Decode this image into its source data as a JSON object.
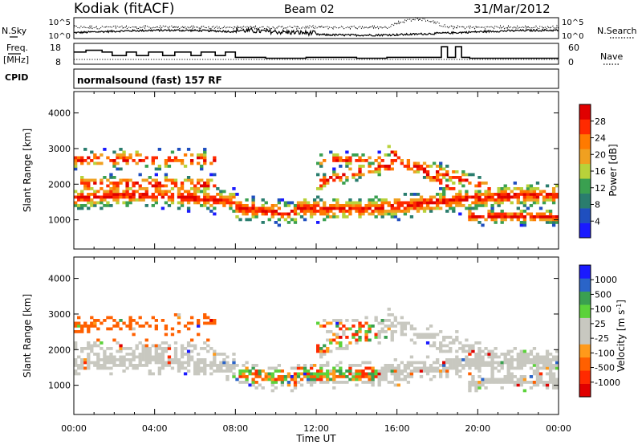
{
  "header": {
    "site": "Kodiak (fitACF)",
    "beam": "Beam 02",
    "date": "31/Mar/2012"
  },
  "labels": {
    "nsky": "N.Sky",
    "nsearch": "N.Search",
    "freq": "Freq.",
    "mhz": "[MHz]",
    "nave": "Nave",
    "cpid": "CPID",
    "cpid_value": "normalsound (fast) 157 RF",
    "nsky_ticks": [
      "10^5",
      "10^0"
    ],
    "nsearch_ticks": [
      "10^5",
      "10^0"
    ],
    "freq_ticks": [
      "18",
      "8"
    ],
    "nave_ticks": [
      "60",
      "0"
    ]
  },
  "colors": {
    "power": [
      "#1a1aff",
      "#1f4fbf",
      "#2a7d6e",
      "#3aa050",
      "#b8d23a",
      "#f0a020",
      "#ff7a00",
      "#ff2a00",
      "#e00000"
    ],
    "velocity": [
      "#1a1aff",
      "#2a64c8",
      "#3aa050",
      "#5bd23a",
      "#c8c8c0",
      "#c8c8c0",
      "#ff9a1a",
      "#ff6000",
      "#ff2a00",
      "#e00000"
    ]
  },
  "chart_data": [
    {
      "type": "line",
      "name": "header-timeseries",
      "x_range_hours": [
        0,
        24
      ],
      "series": [
        {
          "name": "N.Sky",
          "y_ticks": [
            "10^0",
            "10^5"
          ]
        },
        {
          "name": "N.Search",
          "y_ticks": [
            "10^0",
            "10^5"
          ]
        },
        {
          "name": "Freq. [MHz]",
          "y_range": [
            8,
            18
          ],
          "x": [
            0,
            0.6,
            0.6,
            1.4,
            1.4,
            1.9,
            1.9,
            2.6,
            2.6,
            3.1,
            3.1,
            3.7,
            3.7,
            4.4,
            4.4,
            5.0,
            5.0,
            5.8,
            5.8,
            6.3,
            6.3,
            7.0,
            7.0,
            7.5,
            7.5,
            8.0,
            8.0,
            9.5,
            9.5,
            11.5,
            11.5,
            14.0,
            14.0,
            15.5,
            15.5,
            18.2,
            18.2,
            18.5,
            18.5,
            18.9,
            18.9,
            19.2,
            19.2,
            19.6,
            19.6,
            24
          ],
          "y": [
            14,
            14,
            15,
            15,
            14,
            14,
            12,
            12,
            14,
            14,
            12,
            12,
            14,
            14,
            12,
            12,
            14,
            14,
            12,
            12,
            14,
            14,
            12,
            12,
            14,
            14,
            11,
            11,
            10.5,
            10.5,
            11,
            11,
            10.5,
            10.5,
            11,
            11,
            17,
            17,
            11,
            11,
            17,
            17,
            11,
            11,
            10.5,
            10.5
          ]
        },
        {
          "name": "Nave",
          "y_range": [
            0,
            60
          ]
        }
      ],
      "x_ticks": [
        "00:00",
        "04:00",
        "08:00",
        "12:00",
        "16:00",
        "20:00",
        "00:00"
      ]
    },
    {
      "type": "heatmap",
      "name": "power",
      "xlabel": "Time UT",
      "ylabel": "Slant Range [km]",
      "x_ticks": [
        "00:00",
        "04:00",
        "08:00",
        "12:00",
        "16:00",
        "20:00",
        "00:00"
      ],
      "y_ticks": [
        "1000",
        "2000",
        "3000",
        "4000"
      ],
      "ylim": [
        180,
        4600
      ],
      "colorbar": {
        "label": "Power [dB]",
        "ticks": [
          "4",
          "8",
          "12",
          "16",
          "20",
          "24",
          "28"
        ]
      }
    },
    {
      "type": "heatmap",
      "name": "velocity",
      "xlabel": "Time UT",
      "ylabel": "Slant Range [km]",
      "x_ticks": [
        "00:00",
        "04:00",
        "08:00",
        "12:00",
        "16:00",
        "20:00",
        "00:00"
      ],
      "y_ticks": [
        "1000",
        "2000",
        "3000",
        "4000"
      ],
      "ylim": [
        180,
        4600
      ],
      "colorbar": {
        "label": "Velocity [m s^-1]",
        "ticks": [
          "1000",
          "500",
          "100",
          "25",
          "-25",
          "-100",
          "-500",
          "-1000"
        ]
      }
    }
  ]
}
